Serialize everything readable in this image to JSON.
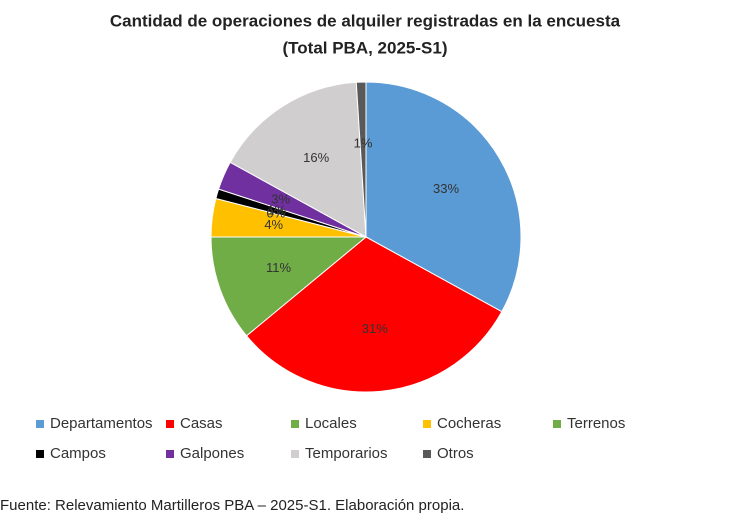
{
  "chart_data": {
    "type": "pie",
    "title": "Cantidad de operaciones de alquiler registradas en la encuesta",
    "subtitle": "(Total PBA, 2025-S1)",
    "categories": [
      "Departamentos",
      "Casas",
      "Locales",
      "Cocheras",
      "Terrenos",
      "Campos",
      "Galpones",
      "Temporarios",
      "Otros"
    ],
    "values": [
      33,
      31,
      11,
      4,
      0,
      1,
      3,
      16,
      1
    ],
    "value_labels": [
      "33%",
      "31%",
      "11%",
      "4%",
      "0%",
      "1%",
      "3%",
      "16%",
      "1%"
    ],
    "colors": [
      "#5b9bd5",
      "#ff0000",
      "#70ad47",
      "#ffc000",
      "#70ad47",
      "#000000",
      "#7030a0",
      "#d0cece",
      "#595959"
    ],
    "legend": "bottom"
  },
  "footer": {
    "text": "Fuente: Relevamiento Martilleros PBA – 2025-S1. Elaboración propia."
  }
}
